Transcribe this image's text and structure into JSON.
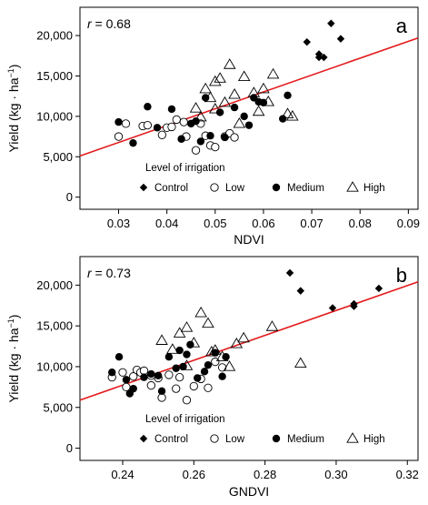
{
  "chart_data": [
    {
      "type": "scatter",
      "panel_label": "a",
      "annotation": "r = 0.68",
      "annotation_r": "r",
      "annotation_value": "= 0.68",
      "xlabel": "NDVI",
      "ylabel": "Yield (kg · ha",
      "ylabel_sup": "−1",
      "ylabel_close": ")",
      "xlim": [
        0.022,
        0.092
      ],
      "ylim": [
        -1500,
        23500
      ],
      "xticks": [
        0.03,
        0.04,
        0.05,
        0.06,
        0.07,
        0.08,
        0.09
      ],
      "xtick_labels": [
        "0.03",
        "0.04",
        "0.05",
        "0.06",
        "0.07",
        "0.08",
        "0.09"
      ],
      "yticks": [
        0,
        5000,
        10000,
        15000,
        20000
      ],
      "ytick_labels": [
        "0",
        "5,000",
        "10,000",
        "15,000",
        "20,000"
      ],
      "legend_title": "Level of irrigation",
      "legend": [
        {
          "label": "Control",
          "marker": "diamond"
        },
        {
          "label": "Low",
          "marker": "open-circle"
        },
        {
          "label": "Medium",
          "marker": "filled-circle"
        },
        {
          "label": "High",
          "marker": "open-triangle"
        }
      ],
      "regression": {
        "x": [
          0.022,
          0.092
        ],
        "y": [
          5100,
          19700
        ],
        "color": "#e41a1c"
      },
      "series": [
        {
          "name": "Control",
          "marker": "diamond",
          "x": [
            0.069,
            0.0715,
            0.0725,
            0.074,
            0.076,
            0.0715
          ],
          "y": [
            19200,
            17700,
            17300,
            21500,
            19600,
            17300
          ]
        },
        {
          "name": "Low",
          "marker": "open-circle",
          "x": [
            0.03,
            0.0315,
            0.035,
            0.039,
            0.04,
            0.041,
            0.042,
            0.0435,
            0.044,
            0.046,
            0.047,
            0.048,
            0.049,
            0.05,
            0.052,
            0.053,
            0.054,
            0.036
          ],
          "y": [
            7500,
            9100,
            8800,
            7700,
            8600,
            8700,
            9600,
            9300,
            7500,
            5800,
            9100,
            7600,
            6400,
            6200,
            7500,
            7900,
            7400,
            8900
          ]
        },
        {
          "name": "Medium",
          "marker": "filled-circle",
          "x": [
            0.03,
            0.033,
            0.036,
            0.038,
            0.041,
            0.043,
            0.045,
            0.046,
            0.047,
            0.048,
            0.049,
            0.051,
            0.052,
            0.054,
            0.056,
            0.057,
            0.058,
            0.059,
            0.06,
            0.064,
            0.065
          ],
          "y": [
            9300,
            6700,
            11200,
            8600,
            10900,
            7200,
            9100,
            9400,
            6900,
            12300,
            7600,
            10500,
            7400,
            11100,
            10000,
            8900,
            12300,
            11800,
            11700,
            9700,
            12600
          ]
        },
        {
          "name": "High",
          "marker": "open-triangle",
          "x": [
            0.046,
            0.048,
            0.049,
            0.05,
            0.051,
            0.052,
            0.053,
            0.054,
            0.055,
            0.056,
            0.058,
            0.059,
            0.06,
            0.061,
            0.062,
            0.065,
            0.066,
            0.05,
            0.047
          ],
          "y": [
            11000,
            13400,
            12300,
            14300,
            14700,
            11700,
            16400,
            12700,
            9100,
            14900,
            12900,
            10600,
            13400,
            11800,
            15200,
            10300,
            10000,
            10900,
            9900
          ]
        }
      ]
    },
    {
      "type": "scatter",
      "panel_label": "b",
      "annotation": "r = 0.73",
      "annotation_r": "r",
      "annotation_value": "= 0.73",
      "xlabel": "GNDVI",
      "ylabel": "Yield (kg · ha",
      "ylabel_sup": "−1",
      "ylabel_close": ")",
      "xlim": [
        0.228,
        0.323
      ],
      "ylim": [
        -1500,
        23500
      ],
      "xticks": [
        0.24,
        0.26,
        0.28,
        0.3,
        0.32
      ],
      "xtick_labels": [
        "0.24",
        "0.26",
        "0.28",
        "0.30",
        "0.32"
      ],
      "yticks": [
        0,
        5000,
        10000,
        15000,
        20000
      ],
      "ytick_labels": [
        "0",
        "5,000",
        "10,000",
        "15,000",
        "20,000"
      ],
      "legend_title": "Level of irrigation",
      "legend": [
        {
          "label": "Control",
          "marker": "diamond"
        },
        {
          "label": "Low",
          "marker": "open-circle"
        },
        {
          "label": "Medium",
          "marker": "filled-circle"
        },
        {
          "label": "High",
          "marker": "open-triangle"
        }
      ],
      "regression": {
        "x": [
          0.228,
          0.323
        ],
        "y": [
          5900,
          20400
        ],
        "color": "#e41a1c"
      },
      "series": [
        {
          "name": "Control",
          "marker": "diamond",
          "x": [
            0.287,
            0.29,
            0.299,
            0.305,
            0.305,
            0.312
          ],
          "y": [
            21500,
            19300,
            17200,
            17700,
            17400,
            19600
          ]
        },
        {
          "name": "Low",
          "marker": "open-circle",
          "x": [
            0.237,
            0.24,
            0.241,
            0.243,
            0.244,
            0.245,
            0.246,
            0.248,
            0.25,
            0.251,
            0.253,
            0.255,
            0.256,
            0.258,
            0.26,
            0.262,
            0.264,
            0.266,
            0.268,
            0.248
          ],
          "y": [
            8700,
            9300,
            7500,
            8800,
            9600,
            9300,
            9500,
            7700,
            8600,
            6200,
            9000,
            7300,
            8700,
            5900,
            7600,
            8500,
            7400,
            10600,
            9900,
            8900
          ]
        },
        {
          "name": "Medium",
          "marker": "filled-circle",
          "x": [
            0.237,
            0.239,
            0.241,
            0.242,
            0.243,
            0.246,
            0.248,
            0.25,
            0.251,
            0.253,
            0.255,
            0.256,
            0.257,
            0.258,
            0.259,
            0.261,
            0.263,
            0.264,
            0.266,
            0.268,
            0.269
          ],
          "y": [
            9300,
            11200,
            8400,
            6700,
            7300,
            8700,
            9100,
            8900,
            7000,
            11200,
            9800,
            12000,
            10000,
            11500,
            12700,
            8600,
            9400,
            10200,
            11700,
            8800,
            11200
          ]
        },
        {
          "name": "High",
          "marker": "open-triangle",
          "x": [
            0.251,
            0.254,
            0.256,
            0.258,
            0.26,
            0.262,
            0.264,
            0.266,
            0.268,
            0.27,
            0.272,
            0.274,
            0.282,
            0.29,
            0.265,
            0.258
          ],
          "y": [
            13200,
            12100,
            14100,
            14800,
            12900,
            16600,
            15300,
            12000,
            11200,
            10000,
            12800,
            13500,
            14900,
            10400,
            11800,
            10100
          ]
        }
      ]
    }
  ]
}
